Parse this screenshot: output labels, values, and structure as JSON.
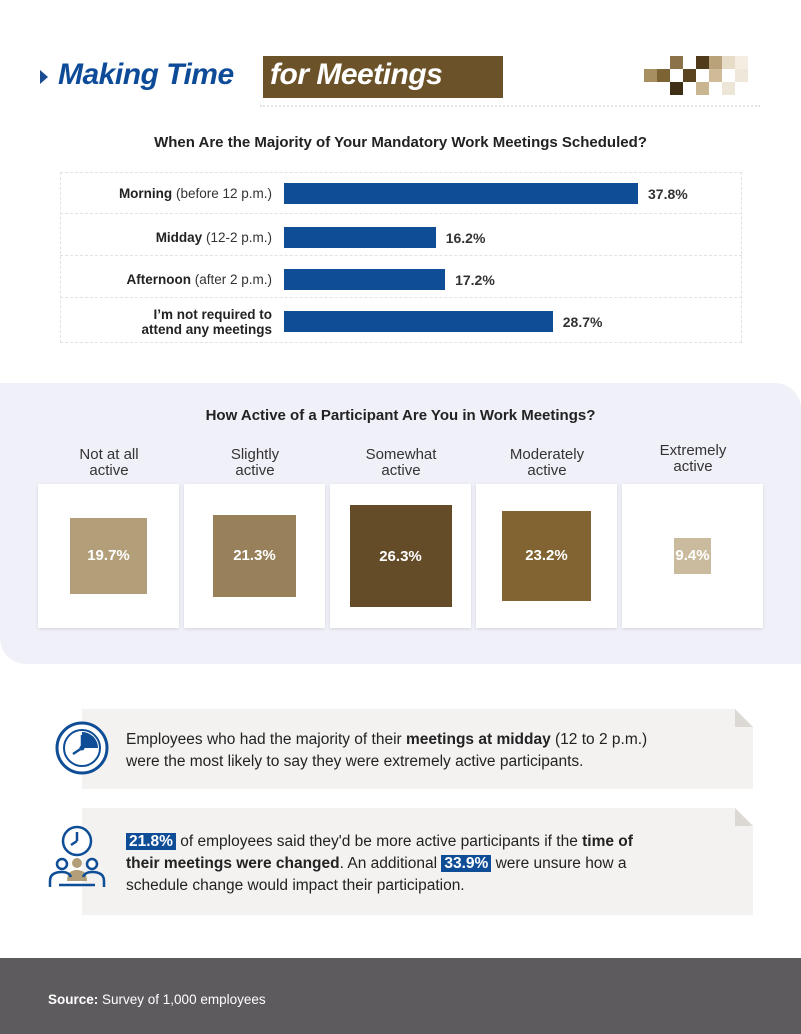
{
  "header": {
    "title_part1": "Making Time",
    "title_part2": "for Meetings"
  },
  "colors": {
    "blue": "#0f4d97",
    "brown_dark": "#6b5228",
    "not_at_all": "#b29f79",
    "slightly": "#97805a",
    "somewhat": "#654c28",
    "moderately": "#816431",
    "extremely": "#cbbb9e"
  },
  "chart_data": [
    {
      "type": "bar",
      "title": "When Are the Majority of Your Mandatory Work Meetings Scheduled?",
      "categories": [
        {
          "main": "Morning",
          "sub": "(before 12 p.m.)"
        },
        {
          "main": "Midday",
          "sub": "(12-2 p.m.)"
        },
        {
          "main": "Afternoon",
          "sub": "(after 2 p.m.)"
        },
        {
          "main": "I’m not required to attend any meetings",
          "line1": "I’m not required to",
          "line2": "attend any meetings",
          "sub": ""
        }
      ],
      "values": [
        37.8,
        16.2,
        17.2,
        28.7
      ],
      "value_labels": [
        "37.8%",
        "16.2%",
        "17.2%",
        "28.7%"
      ]
    },
    {
      "type": "bar",
      "title": "How Active of a Participant Are You in Work Meetings?",
      "categories": [
        {
          "line1": "Not at all",
          "line2": "active"
        },
        {
          "line1": "Slightly",
          "line2": "active"
        },
        {
          "line1": "Somewhat",
          "line2": "active"
        },
        {
          "line1": "Moderately",
          "line2": "active"
        },
        {
          "line1": "Extremely",
          "line2": "active"
        }
      ],
      "values": [
        19.7,
        21.3,
        26.3,
        23.2,
        9.4
      ],
      "value_labels": [
        "19.7%",
        "21.3%",
        "26.3%",
        "23.2%",
        "9.4%"
      ]
    }
  ],
  "callouts": {
    "first": {
      "pre": "Employees who had the majority of their ",
      "bold": "meetings at midday",
      "post": " (12 to 2 p.m.)",
      "line2": "were the most likely to say they were extremely active participants."
    },
    "second": {
      "hl1": "21.8%",
      "a": " of employees said they'd be more active participants if the ",
      "bold1": "time of",
      "bold2": "their meetings were changed",
      "b": ". An additional ",
      "hl2": "33.9%",
      "c": " were unsure how a",
      "line3": "schedule change would impact their participation."
    }
  },
  "footer": {
    "source_label": "Source:",
    "source_text": " Survey of 1,000 employees"
  }
}
